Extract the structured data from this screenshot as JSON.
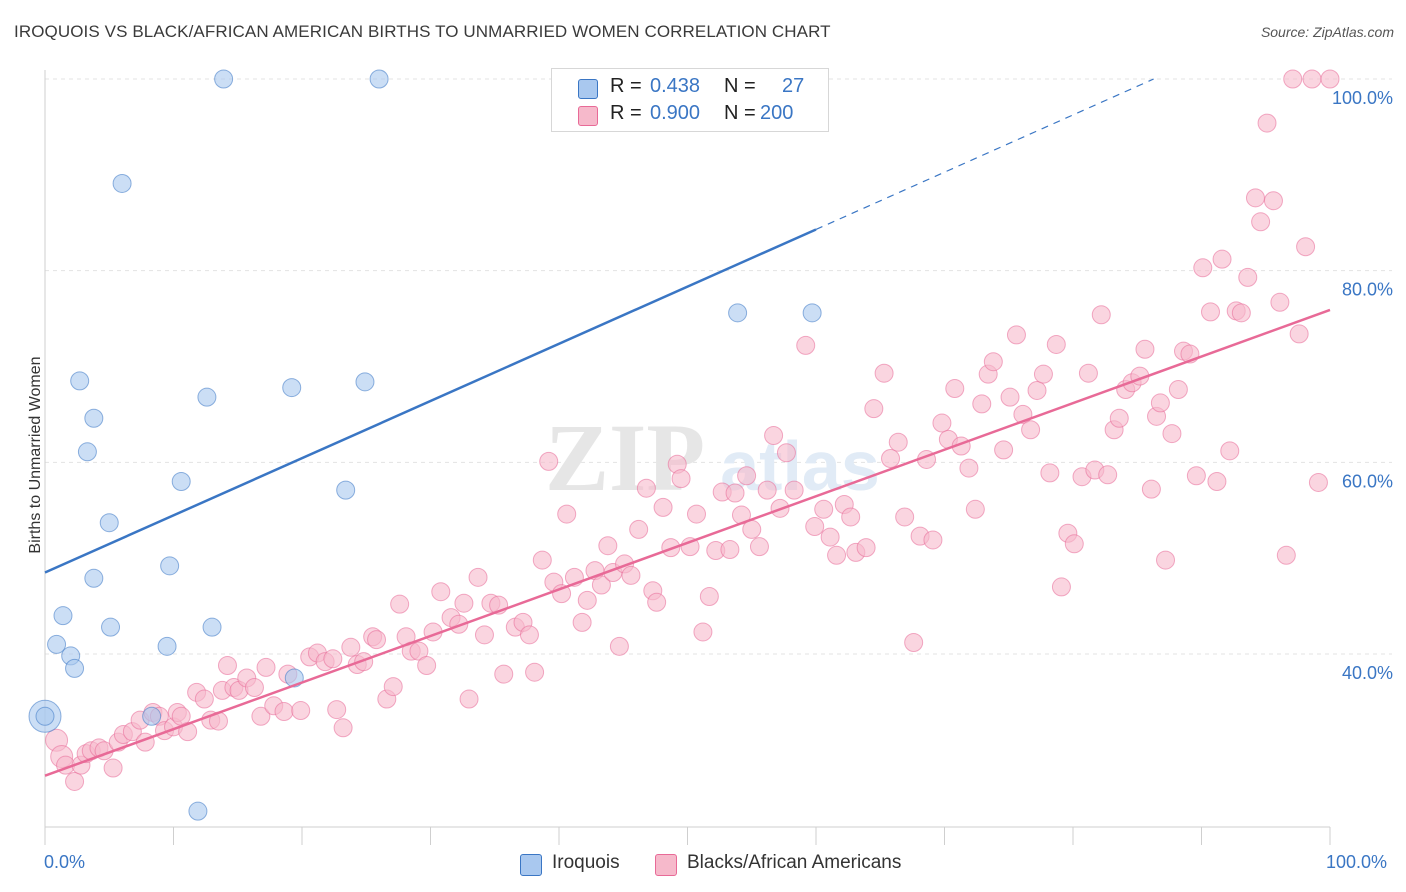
{
  "header": {
    "title": "IROQUOIS VS BLACK/AFRICAN AMERICAN BIRTHS TO UNMARRIED WOMEN CORRELATION CHART",
    "source": "Source: ZipAtlas.com"
  },
  "watermark": {
    "zip": "ZIP",
    "atlas": "atlas"
  },
  "legend": {
    "rows": [
      {
        "r_label": "R =",
        "r_value": "0.438",
        "n_label": "N =",
        "n_value": "27",
        "color": "#a9c8ef"
      },
      {
        "r_label": "R =",
        "r_value": "0.900",
        "n_label": "N =",
        "n_value": "200",
        "color": "#f6b9cb"
      }
    ]
  },
  "bottom_legend": {
    "items": [
      {
        "label": "Iroquois",
        "color": "#a9c8ef"
      },
      {
        "label": "Blacks/African Americans",
        "color": "#f6b9cb"
      }
    ]
  },
  "chart_data": {
    "type": "scatter",
    "title": "IROQUOIS VS BLACK/AFRICAN AMERICAN BIRTHS TO UNMARRIED WOMEN CORRELATION CHART",
    "xlabel": "",
    "ylabel": "Births to Unmarried Women",
    "xlim": [
      0,
      100
    ],
    "ylim": [
      22,
      103
    ],
    "x_tick_labels": [
      "0.0%",
      "100.0%"
    ],
    "y_ticks": [
      40,
      60,
      80,
      100
    ],
    "y_tick_labels": [
      "40.0%",
      "60.0%",
      "80.0%",
      "100.0%"
    ],
    "grid": true,
    "legend_position": "top-center",
    "series": [
      {
        "name": "Iroquois",
        "color": "#3a76c4",
        "fill": "#a9c8ef",
        "R": 0.438,
        "N": 27,
        "trend": {
          "x0": 0,
          "y0": 48.5,
          "x1": 60,
          "y1": 84.3,
          "dashed_to_x": 100,
          "dashed_to_y": 108.2
        },
        "points": [
          [
            0,
            33.5,
            16
          ],
          [
            0,
            33.5,
            9
          ],
          [
            1.4,
            44,
            9
          ],
          [
            0.9,
            41,
            9
          ],
          [
            2,
            39.8,
            9
          ],
          [
            2.3,
            38.5,
            9
          ],
          [
            2.7,
            68.5,
            9
          ],
          [
            3.3,
            61.1,
            9
          ],
          [
            3.8,
            64.6,
            9
          ],
          [
            3.8,
            47.9,
            9
          ],
          [
            5,
            53.7,
            9
          ],
          [
            5.1,
            42.8,
            9
          ],
          [
            6,
            89.1,
            9
          ],
          [
            8.3,
            33.5,
            9
          ],
          [
            9.5,
            40.8,
            9
          ],
          [
            9.7,
            49.2,
            9
          ],
          [
            10.6,
            58,
            9
          ],
          [
            11.9,
            23.6,
            9
          ],
          [
            12.6,
            66.8,
            9
          ],
          [
            13,
            42.8,
            9
          ],
          [
            13.9,
            100,
            9
          ],
          [
            19.2,
            67.8,
            9
          ],
          [
            19.4,
            37.5,
            9
          ],
          [
            23.4,
            57.1,
            9
          ],
          [
            24.9,
            68.4,
            9
          ],
          [
            26,
            100,
            9
          ],
          [
            53.9,
            75.6,
            9
          ],
          [
            59.7,
            75.6,
            9
          ]
        ]
      },
      {
        "name": "Blacks/African Americans",
        "color": "#e86a97",
        "fill": "#f6b9cb",
        "R": 0.9,
        "N": 200,
        "trend": {
          "x0": 0,
          "y0": 27.3,
          "x1": 100,
          "y1": 75.9
        },
        "points": [
          [
            0.9,
            31,
            11
          ],
          [
            1.3,
            29.3,
            11
          ],
          [
            1.6,
            28.4,
            9
          ],
          [
            2.3,
            26.7,
            9
          ],
          [
            2.8,
            28.4,
            9
          ],
          [
            3.2,
            29.6,
            9
          ],
          [
            3.6,
            29.9,
            9
          ],
          [
            4.2,
            30.2,
            9
          ],
          [
            4.6,
            29.9,
            9
          ],
          [
            5.3,
            28.1,
            9
          ],
          [
            5.7,
            30.8,
            9
          ],
          [
            6.1,
            31.6,
            9
          ],
          [
            6.8,
            31.9,
            9
          ],
          [
            7.4,
            33.1,
            9
          ],
          [
            7.8,
            30.8,
            9
          ],
          [
            8.4,
            33.9,
            9
          ],
          [
            8.9,
            33.5,
            9
          ],
          [
            9.3,
            32,
            9
          ],
          [
            10,
            32.4,
            9
          ],
          [
            10.3,
            33.9,
            9
          ],
          [
            10.6,
            33.5,
            9
          ],
          [
            11.1,
            31.9,
            9
          ],
          [
            11.8,
            36,
            9
          ],
          [
            12.4,
            35.3,
            9
          ],
          [
            12.9,
            33.1,
            9
          ],
          [
            13.5,
            33,
            9
          ],
          [
            13.8,
            36.2,
            9
          ],
          [
            14.2,
            38.8,
            9
          ],
          [
            14.7,
            36.5,
            9
          ],
          [
            15.1,
            36.2,
            9
          ],
          [
            15.7,
            37.5,
            9
          ],
          [
            16.3,
            36.5,
            9
          ],
          [
            16.8,
            33.5,
            9
          ],
          [
            17.2,
            38.6,
            9
          ],
          [
            17.8,
            34.6,
            9
          ],
          [
            18.6,
            34,
            9
          ],
          [
            18.9,
            37.9,
            9
          ],
          [
            19.9,
            34.1,
            9
          ],
          [
            20.6,
            39.7,
            9
          ],
          [
            21.2,
            40.1,
            9
          ],
          [
            21.8,
            39.2,
            9
          ],
          [
            22.4,
            39.5,
            9
          ],
          [
            22.7,
            34.2,
            9
          ],
          [
            23.2,
            32.3,
            9
          ],
          [
            23.8,
            40.7,
            9
          ],
          [
            24.3,
            38.9,
            9
          ],
          [
            24.8,
            39.2,
            9
          ],
          [
            25.5,
            41.8,
            9
          ],
          [
            25.8,
            41.5,
            9
          ],
          [
            26.6,
            35.3,
            9
          ],
          [
            27.1,
            36.6,
            9
          ],
          [
            27.6,
            45.2,
            9
          ],
          [
            28.1,
            41.8,
            9
          ],
          [
            28.5,
            40.3,
            9
          ],
          [
            29.1,
            40.3,
            9
          ],
          [
            29.7,
            38.8,
            9
          ],
          [
            30.2,
            42.3,
            9
          ],
          [
            30.8,
            46.5,
            9
          ],
          [
            31.6,
            43.8,
            9
          ],
          [
            32.2,
            43.1,
            9
          ],
          [
            32.6,
            45.3,
            9
          ],
          [
            33,
            35.3,
            9
          ],
          [
            33.7,
            48,
            9
          ],
          [
            34.2,
            42,
            9
          ],
          [
            34.7,
            45.3,
            9
          ],
          [
            35.3,
            45.1,
            9
          ],
          [
            35.7,
            37.9,
            9
          ],
          [
            36.6,
            42.8,
            9
          ],
          [
            37.2,
            43.3,
            9
          ],
          [
            37.7,
            42,
            9
          ],
          [
            38.1,
            38.1,
            9
          ],
          [
            38.7,
            49.8,
            9
          ],
          [
            39.2,
            60.1,
            9
          ],
          [
            39.6,
            47.5,
            9
          ],
          [
            40.2,
            46.3,
            9
          ],
          [
            40.6,
            54.6,
            9
          ],
          [
            41.2,
            48,
            9
          ],
          [
            41.8,
            43.3,
            9
          ],
          [
            42.2,
            45.6,
            9
          ],
          [
            42.8,
            48.7,
            9
          ],
          [
            43.3,
            47.2,
            9
          ],
          [
            43.8,
            51.3,
            9
          ],
          [
            44.2,
            48.5,
            9
          ],
          [
            44.7,
            40.8,
            9
          ],
          [
            45.1,
            49.4,
            9
          ],
          [
            45.6,
            48.2,
            9
          ],
          [
            46.2,
            53,
            9
          ],
          [
            46.8,
            57.3,
            9
          ],
          [
            47.3,
            46.6,
            9
          ],
          [
            47.6,
            45.4,
            9
          ],
          [
            48.1,
            55.3,
            9
          ],
          [
            48.7,
            51.1,
            9
          ],
          [
            49.2,
            59.8,
            9
          ],
          [
            49.5,
            58.3,
            9
          ],
          [
            50.2,
            51.2,
            9
          ],
          [
            50.7,
            54.6,
            9
          ],
          [
            51.2,
            42.3,
            9
          ],
          [
            51.7,
            46,
            9
          ],
          [
            52.2,
            50.8,
            9
          ],
          [
            52.7,
            56.9,
            9
          ],
          [
            53.3,
            50.9,
            9
          ],
          [
            53.7,
            56.8,
            9
          ],
          [
            54.2,
            54.5,
            9
          ],
          [
            54.6,
            58.6,
            9
          ],
          [
            55,
            53,
            9
          ],
          [
            55.6,
            51.2,
            9
          ],
          [
            56.2,
            57.1,
            9
          ],
          [
            56.7,
            62.8,
            9
          ],
          [
            57.2,
            55.2,
            9
          ],
          [
            57.7,
            61,
            9
          ],
          [
            58.3,
            57.1,
            9
          ],
          [
            59.2,
            72.2,
            9
          ],
          [
            59.9,
            53.3,
            9
          ],
          [
            60.6,
            55.1,
            9
          ],
          [
            61.1,
            52.2,
            9
          ],
          [
            61.6,
            50.3,
            9
          ],
          [
            62.2,
            55.6,
            9
          ],
          [
            62.7,
            54.3,
            9
          ],
          [
            63.1,
            50.6,
            9
          ],
          [
            63.9,
            51.1,
            9
          ],
          [
            64.5,
            65.6,
            9
          ],
          [
            65.3,
            69.3,
            9
          ],
          [
            65.8,
            60.4,
            9
          ],
          [
            66.4,
            62.1,
            9
          ],
          [
            66.9,
            54.3,
            9
          ],
          [
            67.6,
            41.2,
            9
          ],
          [
            68.1,
            52.3,
            9
          ],
          [
            68.6,
            60.3,
            9
          ],
          [
            69.1,
            51.9,
            9
          ],
          [
            69.8,
            64.1,
            9
          ],
          [
            70.3,
            62.4,
            9
          ],
          [
            70.8,
            67.7,
            9
          ],
          [
            71.3,
            61.7,
            9
          ],
          [
            71.9,
            59.4,
            9
          ],
          [
            72.4,
            55.1,
            9
          ],
          [
            72.9,
            66.1,
            9
          ],
          [
            73.4,
            69.2,
            9
          ],
          [
            73.8,
            70.5,
            9
          ],
          [
            74.6,
            61.3,
            9
          ],
          [
            75.1,
            66.8,
            9
          ],
          [
            75.6,
            73.3,
            9
          ],
          [
            76.1,
            65,
            9
          ],
          [
            76.7,
            63.4,
            9
          ],
          [
            77.2,
            67.5,
            9
          ],
          [
            77.7,
            69.2,
            9
          ],
          [
            78.2,
            58.9,
            9
          ],
          [
            78.7,
            72.3,
            9
          ],
          [
            79.1,
            47,
            9
          ],
          [
            79.6,
            52.6,
            9
          ],
          [
            80.1,
            51.5,
            9
          ],
          [
            80.7,
            58.5,
            9
          ],
          [
            81.2,
            69.3,
            9
          ],
          [
            81.7,
            59.2,
            9
          ],
          [
            82.2,
            75.4,
            9
          ],
          [
            82.7,
            58.7,
            9
          ],
          [
            83.2,
            63.4,
            9
          ],
          [
            83.6,
            64.6,
            9
          ],
          [
            84.1,
            67.6,
            9
          ],
          [
            84.6,
            68.3,
            9
          ],
          [
            85.2,
            69,
            9
          ],
          [
            85.6,
            71.8,
            9
          ],
          [
            86.1,
            57.2,
            9
          ],
          [
            86.5,
            64.8,
            9
          ],
          [
            86.8,
            66.2,
            9
          ],
          [
            87.2,
            49.8,
            9
          ],
          [
            87.7,
            63,
            9
          ],
          [
            88.2,
            67.6,
            9
          ],
          [
            88.6,
            71.6,
            9
          ],
          [
            89.1,
            71.3,
            9
          ],
          [
            89.6,
            58.6,
            9
          ],
          [
            90.1,
            80.3,
            9
          ],
          [
            90.7,
            75.7,
            9
          ],
          [
            91.2,
            58,
            9
          ],
          [
            91.6,
            81.2,
            9
          ],
          [
            92.2,
            61.2,
            9
          ],
          [
            92.7,
            75.8,
            9
          ],
          [
            93.1,
            75.6,
            9
          ],
          [
            93.6,
            79.3,
            9
          ],
          [
            94.2,
            87.6,
            9
          ],
          [
            94.6,
            85.1,
            9
          ],
          [
            95.1,
            95.4,
            9
          ],
          [
            95.6,
            87.3,
            9
          ],
          [
            96.1,
            76.7,
            9
          ],
          [
            96.6,
            50.3,
            9
          ],
          [
            97.1,
            100,
            9
          ],
          [
            97.6,
            73.4,
            9
          ],
          [
            98.1,
            82.5,
            9
          ],
          [
            98.6,
            100,
            9
          ],
          [
            99.1,
            57.9,
            9
          ],
          [
            100,
            100,
            9
          ]
        ]
      }
    ]
  }
}
